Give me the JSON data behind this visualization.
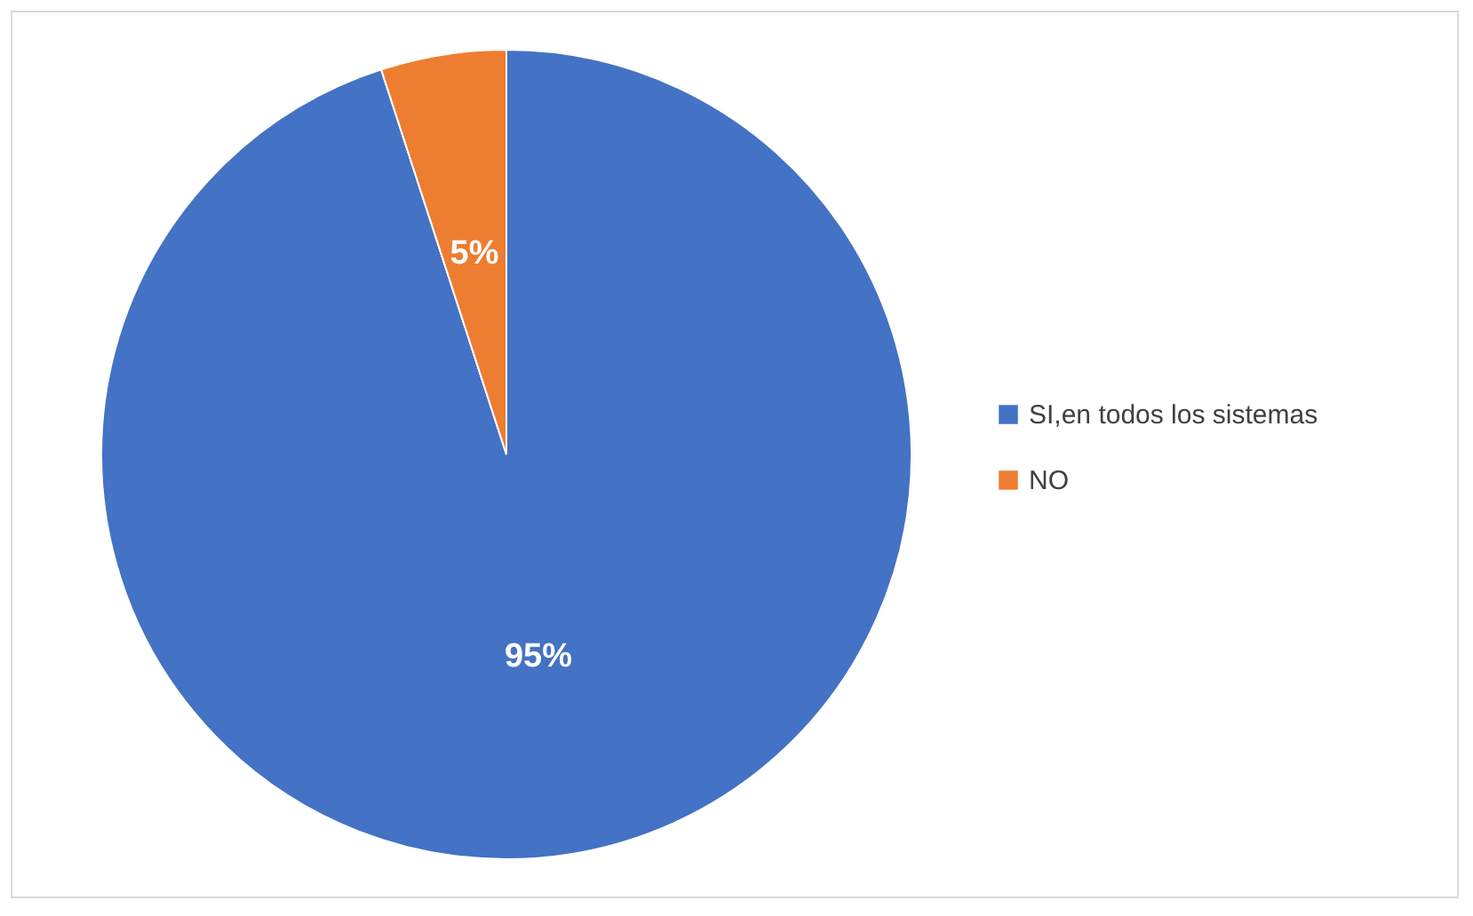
{
  "chart_data": {
    "type": "pie",
    "categories": [
      "SI,en todos los sistemas",
      "NO"
    ],
    "values": [
      95,
      5
    ],
    "colors": [
      "#4472c4",
      "#ed7d31"
    ],
    "value_labels": [
      "95%",
      "5%"
    ],
    "legend": "right"
  }
}
